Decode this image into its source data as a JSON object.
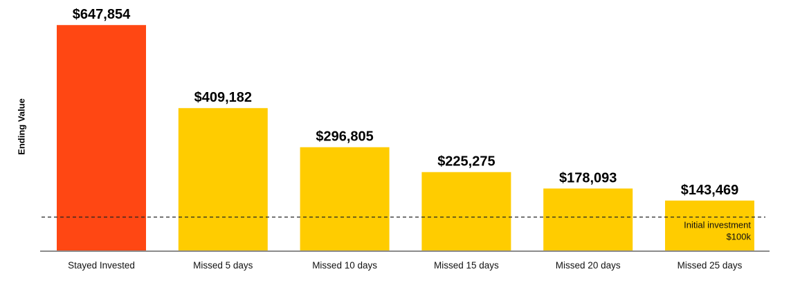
{
  "chart_data": {
    "type": "bar",
    "title": "",
    "xlabel": "",
    "ylabel": "Ending Value",
    "categories": [
      "Stayed Invested",
      "Missed 5 days",
      "Missed 10 days",
      "Missed 15 days",
      "Missed 20 days",
      "Missed 25 days"
    ],
    "values": [
      647854,
      409182,
      296805,
      225275,
      178093,
      143469
    ],
    "data_labels": [
      "$647,854",
      "$409,182",
      "$296,805",
      "$225,275",
      "$178,093",
      "$143,469"
    ],
    "bar_colors": [
      "#FF4713",
      "#FFCC00",
      "#FFCC00",
      "#FFCC00",
      "#FFCC00",
      "#FFCC00"
    ],
    "ylim": [
      0,
      700000
    ],
    "grid": false,
    "reference_line": {
      "value": 100000,
      "style": "dashed",
      "label_line1": "Initial investment",
      "label_line2": "$100k"
    }
  }
}
